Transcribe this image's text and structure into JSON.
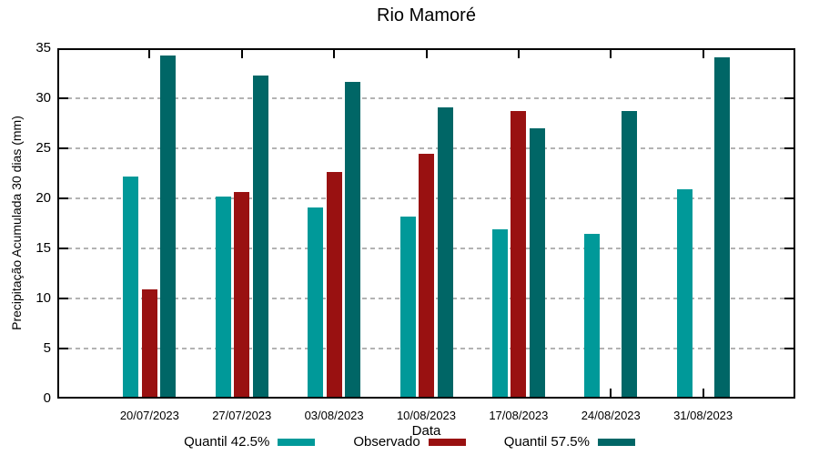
{
  "title": "Rio Mamoré",
  "chart_data": {
    "type": "bar",
    "title": "Rio Mamoré",
    "xlabel": "Data",
    "ylabel": "Precipitação Acumulada 30 dias (mm)",
    "ylim": [
      0,
      35
    ],
    "yticks": [
      0,
      5,
      10,
      15,
      20,
      25,
      30,
      35
    ],
    "grid": true,
    "legend_position": "bottom",
    "categories": [
      "20/07/2023",
      "27/07/2023",
      "03/08/2023",
      "10/08/2023",
      "17/08/2023",
      "24/08/2023",
      "31/08/2023"
    ],
    "series": [
      {
        "name": "Quantil 42.5%",
        "color": "#009999",
        "values": [
          22.2,
          20.2,
          19.1,
          18.2,
          16.9,
          16.5,
          20.9
        ]
      },
      {
        "name": "Observado",
        "color": "#991111",
        "values": [
          10.9,
          20.6,
          22.6,
          24.5,
          28.7,
          null,
          null
        ]
      },
      {
        "name": "Quantil 57.5%",
        "color": "#006666",
        "values": [
          34.3,
          32.3,
          31.6,
          29.1,
          27.0,
          28.7,
          34.1
        ]
      }
    ],
    "colors": {
      "axis": "#000000",
      "grid": "#b3b3b3",
      "background": "#ffffff"
    }
  }
}
